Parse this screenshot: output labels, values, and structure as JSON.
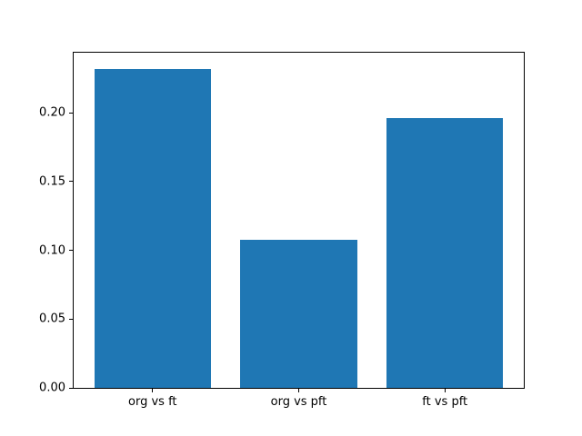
{
  "chart_data": {
    "type": "bar",
    "title": "",
    "xlabel": "",
    "ylabel": "",
    "categories": [
      "org vs ft",
      "org vs pft",
      "ft vs pft"
    ],
    "values": [
      0.232,
      0.108,
      0.196
    ],
    "ylim": [
      0,
      0.2438
    ],
    "xlim": [
      -0.54,
      2.54
    ],
    "yticks": [
      {
        "value": 0.0,
        "label": "0.00"
      },
      {
        "value": 0.05,
        "label": "0.05"
      },
      {
        "value": 0.1,
        "label": "0.10"
      },
      {
        "value": 0.15,
        "label": "0.15"
      },
      {
        "value": 0.2,
        "label": "0.20"
      }
    ],
    "bar_width": 0.8,
    "grid": false,
    "legend": false,
    "colors": {
      "bar": "#1f77b4",
      "axis": "#000000",
      "tick_text": "#000000",
      "background": "#ffffff"
    }
  }
}
